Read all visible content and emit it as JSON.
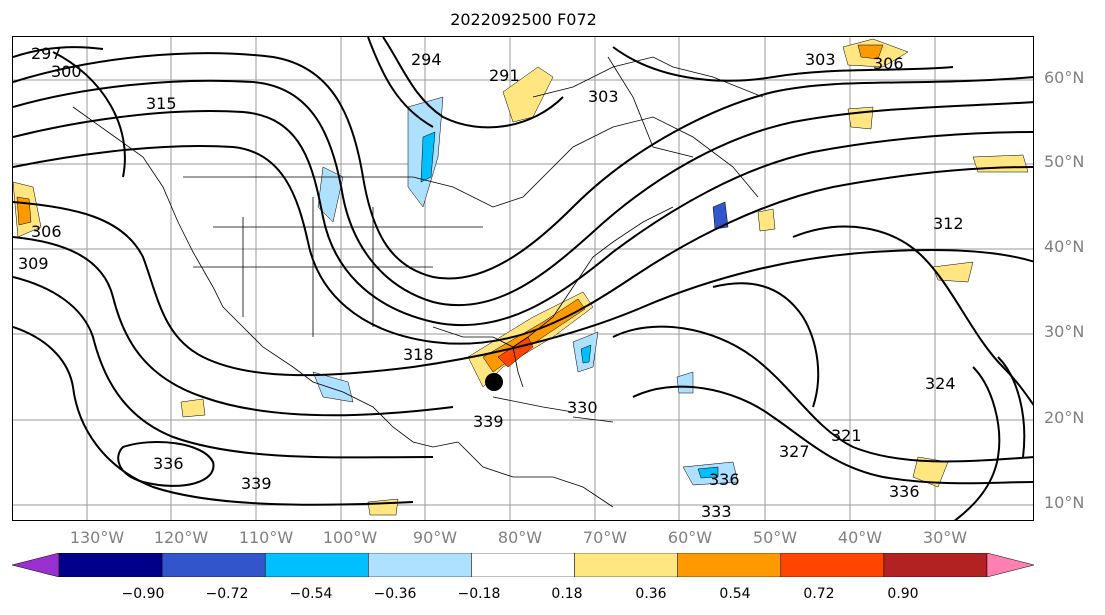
{
  "title": "2022092500 F072",
  "lat_labels": [
    "60°N",
    "50°N",
    "40°N",
    "30°N",
    "20°N",
    "10°N"
  ],
  "lon_labels": [
    "130°W",
    "120°W",
    "110°W",
    "100°W",
    "90°W",
    "80°W",
    "70°W",
    "60°W",
    "50°W",
    "40°W",
    "30°W"
  ],
  "contour_labels": [
    "297",
    "300",
    "303",
    "306",
    "309",
    "312",
    "315",
    "318",
    "321",
    "324",
    "327",
    "330",
    "333",
    "336",
    "339",
    "291",
    "294"
  ],
  "colorbar": {
    "ticks": [
      "−0.90",
      "−0.72",
      "−0.54",
      "−0.36",
      "−0.18",
      "0.18",
      "0.36",
      "0.54",
      "0.72",
      "0.90"
    ],
    "colors": [
      "#9b30d0",
      "#00008b",
      "#3355cc",
      "#00bfff",
      "#aee0ff",
      "#ffffff",
      "#ffe680",
      "#ff9900",
      "#ff4500",
      "#b22222",
      "#ff80b0"
    ]
  }
}
